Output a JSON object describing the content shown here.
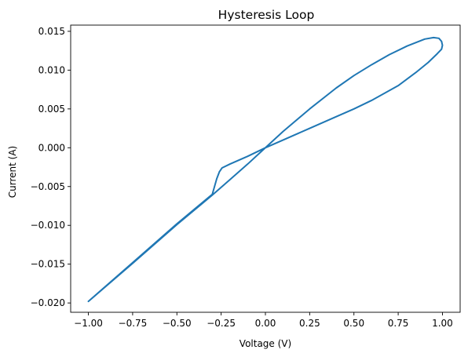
{
  "chart_data": {
    "type": "line",
    "title": "Hysteresis Loop",
    "xlabel": "Voltage (V)",
    "ylabel": "Current (A)",
    "xlim": [
      -1.1,
      1.1
    ],
    "ylim": [
      -0.0212,
      0.0158
    ],
    "grid": false,
    "xticks": [
      -1.0,
      -0.75,
      -0.5,
      -0.25,
      0.0,
      0.25,
      0.5,
      0.75,
      1.0
    ],
    "xtick_labels": [
      "−1.00",
      "−0.75",
      "−0.50",
      "−0.25",
      "0.00",
      "0.25",
      "0.50",
      "0.75",
      "1.00"
    ],
    "yticks": [
      -0.02,
      -0.015,
      -0.01,
      -0.005,
      0.0,
      0.005,
      0.01,
      0.015
    ],
    "ytick_labels": [
      "−0.020",
      "−0.015",
      "−0.010",
      "−0.005",
      "0.000",
      "0.005",
      "0.010",
      "0.015"
    ],
    "series": [
      {
        "color": "#1f77b4",
        "x": [
          -1.0,
          -0.75,
          -0.5,
          -0.3,
          -0.29,
          -0.275,
          -0.26,
          -0.245,
          -0.2,
          -0.1,
          0.0,
          0.1,
          0.25,
          0.4,
          0.5,
          0.6,
          0.7,
          0.8,
          0.9,
          0.95,
          0.98,
          0.995,
          1.0,
          0.995,
          0.97,
          0.92,
          0.85,
          0.75,
          0.6,
          0.5,
          0.4,
          0.25,
          0.1,
          0.0,
          -0.1,
          -0.2,
          -0.3,
          -0.5,
          -0.75,
          -1.0
        ],
        "y": [
          -0.0198,
          -0.0148,
          -0.0098,
          -0.006,
          -0.0052,
          -0.004,
          -0.0031,
          -0.0026,
          -0.0021,
          -0.0011,
          0.0,
          0.0021,
          0.005,
          0.0077,
          0.0093,
          0.0107,
          0.012,
          0.0131,
          0.014,
          0.0142,
          0.0141,
          0.0137,
          0.0132,
          0.0127,
          0.0121,
          0.011,
          0.0097,
          0.008,
          0.0061,
          0.005,
          0.004,
          0.0025,
          0.001,
          0.0,
          -0.0021,
          -0.0041,
          -0.0061,
          -0.0099,
          -0.0149,
          -0.0198
        ]
      }
    ]
  }
}
